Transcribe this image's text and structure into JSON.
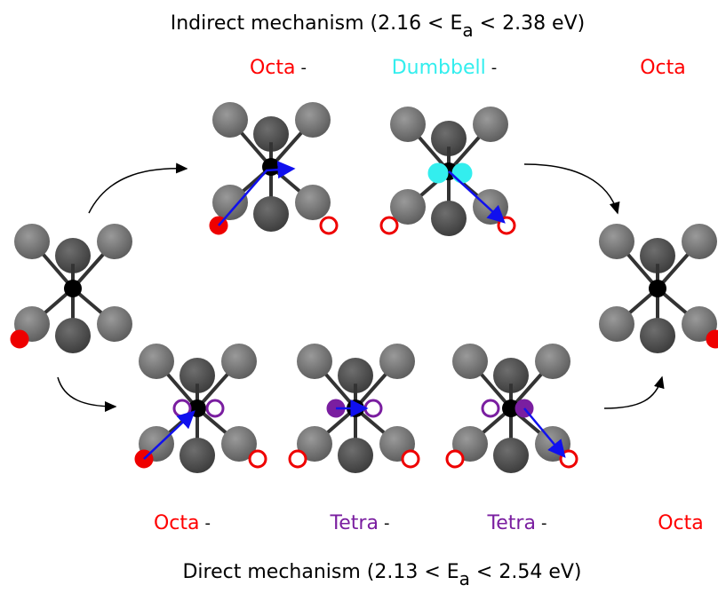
{
  "top_title": {
    "before": "Indirect mechanism (2.16 < E",
    "sub": "a",
    "after": " < 2.38 eV)"
  },
  "top_labels": [
    {
      "state": "Octa",
      "color": "#ff0000",
      "sep": "-"
    },
    {
      "state": "Dumbbell",
      "color": "#33eeee",
      "sep": "-"
    },
    {
      "state": "Octa",
      "color": "#ff0000"
    }
  ],
  "bottom_labels": [
    {
      "state": "Octa",
      "color": "#ff0000",
      "sep": "-"
    },
    {
      "state": "Tetra",
      "color": "#7a1ea0",
      "sep": "-"
    },
    {
      "state": "Tetra",
      "color": "#7a1ea0",
      "sep": "-"
    },
    {
      "state": "Octa",
      "color": "#ff0000"
    }
  ],
  "bottom_title": {
    "before": "Direct mechanism (2.13 < E",
    "sub": "a",
    "after": " < 2.54 eV)"
  }
}
